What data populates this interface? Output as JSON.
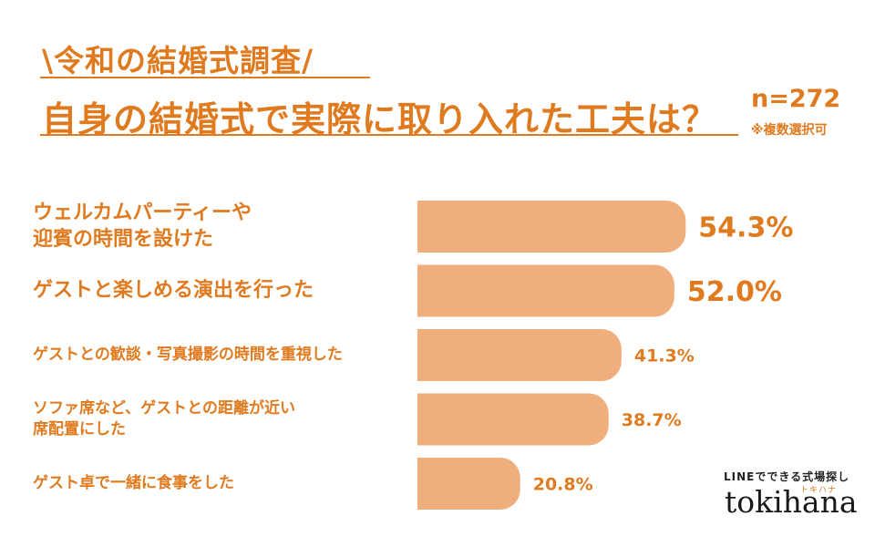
{
  "header": {
    "subtitle": "\\令和の結婚式調査/",
    "title": "自身の結婚式で実際に取り入れた工夫は？",
    "sample": "n=272",
    "note": "※複数選択可"
  },
  "chart_data": {
    "type": "bar",
    "orientation": "horizontal",
    "categories": [
      [
        "ウェルカムパーティーや",
        "迎賓の時間を設けた"
      ],
      [
        "ゲストと楽しめる演出を行った"
      ],
      [
        "ゲストとの歓談・写真撮影の時間を重視した"
      ],
      [
        "ソファ席など、ゲストとの距離が近い",
        "席配置にした"
      ],
      [
        "ゲスト卓で一緒に食事をした"
      ]
    ],
    "values": [
      54.3,
      52.0,
      41.3,
      38.7,
      20.8
    ],
    "value_labels": [
      "54.3%",
      "52.0%",
      "41.3%",
      "38.7%",
      "20.8%"
    ],
    "unit": "%",
    "bar_color": "#f0ae7d",
    "label_color": "#e07a1f",
    "grid": false,
    "legend": "none"
  },
  "logo": {
    "tagline": "LINEでできる式場探し",
    "kana": "トキハナ",
    "name": "tokihana"
  }
}
